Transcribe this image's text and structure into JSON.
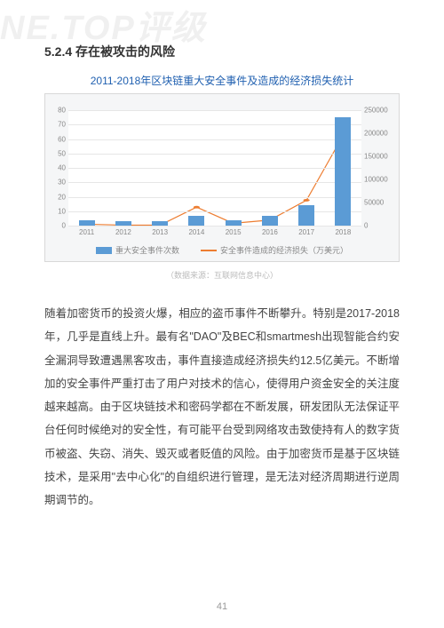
{
  "watermark": "NE.TOP评级",
  "section_heading": "5.2.4 存在被攻击的风险",
  "chart": {
    "type": "bar+line",
    "title": "2011-2018年区块链重大安全事件及造成的经济损失统计",
    "background_color": "#f5f6f7",
    "border_color": "#d8d8d8",
    "plot_background": "#ffffff",
    "grid_color": "#e6e6e6",
    "categories": [
      "2011",
      "2012",
      "2013",
      "2014",
      "2015",
      "2016",
      "2017",
      "2018"
    ],
    "bar_series": {
      "label": "重大安全事件次数",
      "color": "#5b9bd5",
      "values": [
        4,
        3,
        3,
        7,
        4,
        7,
        14,
        75
      ]
    },
    "line_series": {
      "label": "安全事件造成的经济损失（万美元）",
      "color": "#ed7d31",
      "values": [
        3000,
        1000,
        1000,
        40000,
        5000,
        12000,
        55000,
        195000
      ]
    },
    "y_left": {
      "min": 0,
      "max": 80,
      "step": 10
    },
    "y_right": {
      "min": 0,
      "max": 250000,
      "step": 50000
    },
    "label_fontsize": 8,
    "label_color": "#888888"
  },
  "source_note": "（数据来源：互联网信息中心）",
  "paragraphs": [
    "随着加密货币的投资火爆，相应的盗币事件不断攀升。特别是2017-2018年，几乎是直线上升。最有名\"DAO\"及BEC和smartmesh出现智能合约安全漏洞导致遭遇黑客攻击，事件直接造成经济损失约12.5亿美元。不断增加的安全事件严重打击了用户对技术的信心，使得用户资金安全的关注度越来越高。由于区块链技术和密码学都在不断发展，研发团队无法保证平台任何时候绝对的安全性，有可能平台受到网络攻击致使持有人的数字货币被盗、失窃、消失、毁灭或者贬值的风险。由于加密货币是基于区块链技术，是采用\"去中心化\"的自组织进行管理，是无法对经济周期进行逆周期调节的。"
  ],
  "page_number": "41"
}
